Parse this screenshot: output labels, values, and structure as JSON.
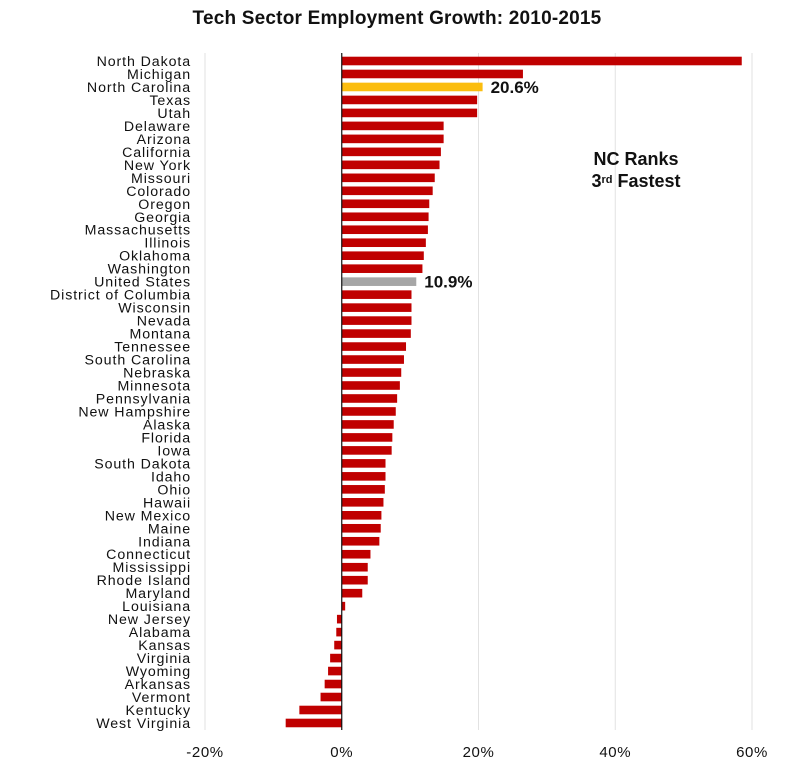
{
  "chart_data": {
    "type": "bar",
    "orientation": "horizontal",
    "title": "Tech Sector Employment Growth: 2010-2015",
    "categories": [
      "North Dakota",
      "Michigan",
      "North Carolina",
      "Texas",
      "Utah",
      "Delaware",
      "Arizona",
      "California",
      "New York",
      "Missouri",
      "Colorado",
      "Oregon",
      "Georgia",
      "Massachusetts",
      "Illinois",
      "Oklahoma",
      "Washington",
      "United States",
      "District of Columbia",
      "Wisconsin",
      "Nevada",
      "Montana",
      "Tennessee",
      "South Carolina",
      "Nebraska",
      "Minnesota",
      "Pennsylvania",
      "New Hampshire",
      "Alaska",
      "Florida",
      "Iowa",
      "South Dakota",
      "Idaho",
      "Ohio",
      "Hawaii",
      "New Mexico",
      "Maine",
      "Indiana",
      "Connecticut",
      "Mississippi",
      "Rhode Island",
      "Maryland",
      "Louisiana",
      "New Jersey",
      "Alabama",
      "Kansas",
      "Virginia",
      "Wyoming",
      "Arkansas",
      "Vermont",
      "Kentucky",
      "West Virginia"
    ],
    "values": [
      58.5,
      26.5,
      20.6,
      19.8,
      19.8,
      14.9,
      14.9,
      14.5,
      14.3,
      13.6,
      13.3,
      12.8,
      12.7,
      12.6,
      12.3,
      12.0,
      11.8,
      10.9,
      10.2,
      10.2,
      10.2,
      10.1,
      9.4,
      9.1,
      8.7,
      8.5,
      8.1,
      7.9,
      7.6,
      7.4,
      7.3,
      6.4,
      6.4,
      6.3,
      6.1,
      5.8,
      5.7,
      5.5,
      4.2,
      3.8,
      3.8,
      3.0,
      0.5,
      -0.7,
      -0.8,
      -1.1,
      -1.7,
      -2.0,
      -2.5,
      -3.1,
      -6.2,
      -8.2
    ],
    "xlim": [
      -20,
      60
    ],
    "ticks": [
      "-20%",
      "0%",
      "20%",
      "40%",
      "60%"
    ],
    "tick_values": [
      -20,
      0,
      20,
      40,
      60
    ],
    "grid": true,
    "colors": {
      "default": "#c00000",
      "highlight": "#fbbd0f",
      "reference": "#a6a6a6",
      "grid": "#e2e2e2",
      "axis": "#111111"
    },
    "highlight_category": "North Carolina",
    "reference_category": "United States",
    "annotations": [
      {
        "category": "North Carolina",
        "text": "20.6%"
      },
      {
        "category": "United States",
        "text": "10.9%"
      }
    ],
    "callout": {
      "line1": "NC Ranks",
      "line2_num": "3",
      "line2_sup": "rd",
      "line2_rest": " Fastest"
    }
  }
}
